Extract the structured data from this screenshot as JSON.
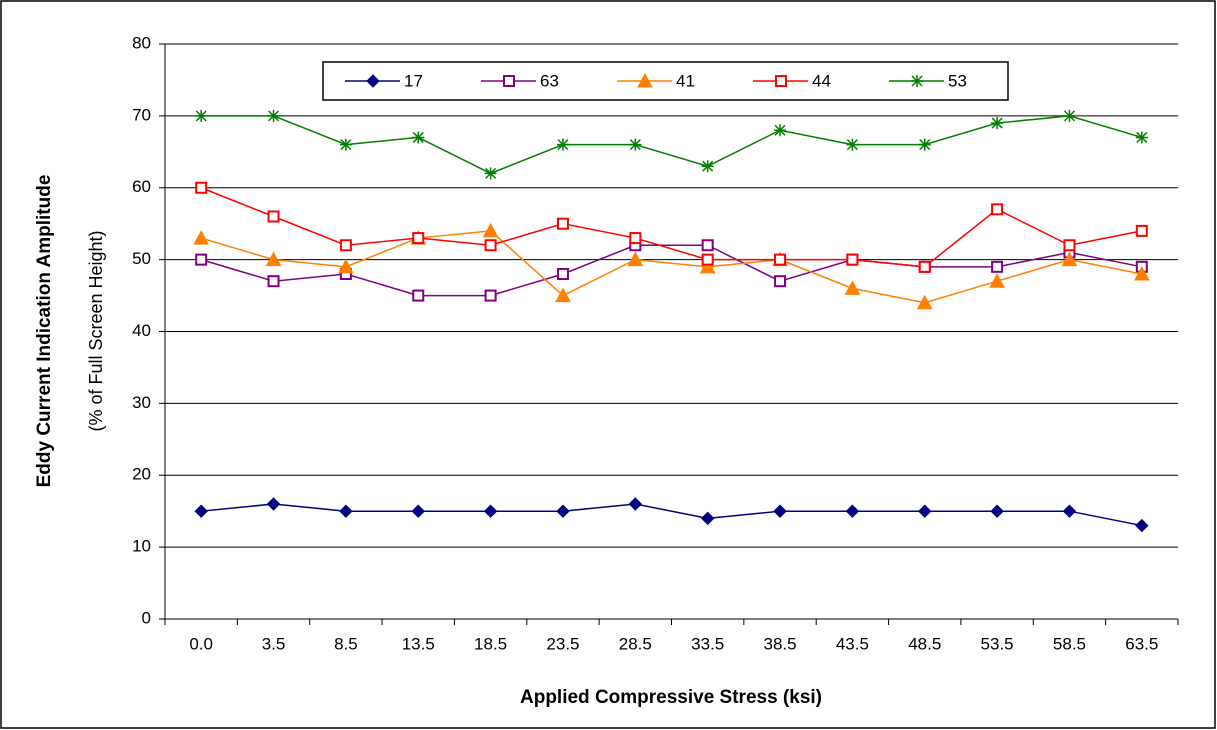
{
  "chart_data": {
    "type": "line",
    "xlabel": "Applied Compressive Stress (ksi)",
    "ylabel": [
      "Eddy Current Indication Amplitude",
      "(% of Full Screen Height)"
    ],
    "categories": [
      "0.0",
      "3.5",
      "8.5",
      "13.5",
      "18.5",
      "23.5",
      "28.5",
      "33.5",
      "38.5",
      "43.5",
      "48.5",
      "53.5",
      "58.5",
      "63.5"
    ],
    "series": [
      {
        "name": "17",
        "color": "#000080",
        "marker": "diamond",
        "values": [
          15,
          16,
          15,
          15,
          15,
          15,
          16,
          14,
          15,
          15,
          15,
          15,
          15,
          13
        ]
      },
      {
        "name": "63",
        "color": "#800080",
        "marker": "square",
        "values": [
          50,
          47,
          48,
          45,
          45,
          48,
          52,
          52,
          47,
          50,
          49,
          49,
          51,
          49
        ]
      },
      {
        "name": "41",
        "color": "#ff8000",
        "marker": "triangle",
        "values": [
          53,
          50,
          49,
          53,
          54,
          45,
          50,
          49,
          50,
          46,
          44,
          47,
          50,
          48
        ]
      },
      {
        "name": "44",
        "color": "#ff0000",
        "marker": "square",
        "values": [
          60,
          56,
          52,
          53,
          52,
          55,
          53,
          50,
          50,
          50,
          49,
          57,
          52,
          54
        ]
      },
      {
        "name": "53",
        "color": "#008000",
        "marker": "star",
        "values": [
          70,
          70,
          66,
          67,
          62,
          66,
          66,
          63,
          68,
          66,
          66,
          69,
          70,
          67
        ]
      }
    ],
    "ylim": [
      0,
      80
    ],
    "yticks": [
      0,
      10,
      20,
      30,
      40,
      50,
      60,
      70,
      80
    ],
    "grid": true,
    "legend": "top"
  }
}
